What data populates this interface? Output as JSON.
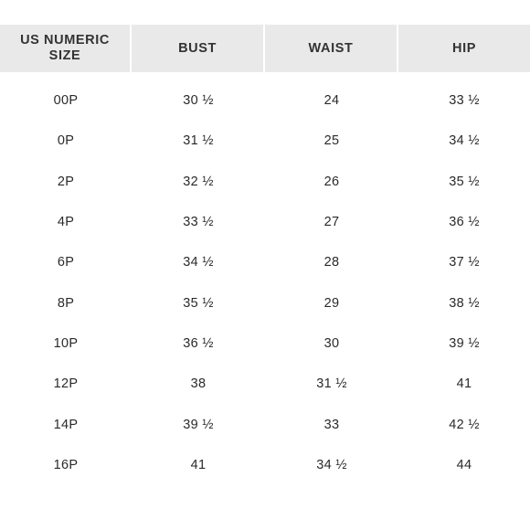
{
  "table": {
    "columns": [
      "US NUMERIC\nSIZE",
      "BUST",
      "WAIST",
      "HIP"
    ],
    "rows": [
      [
        "00P",
        "30 ½",
        "24",
        "33 ½"
      ],
      [
        "0P",
        "31 ½",
        "25",
        "34 ½"
      ],
      [
        "2P",
        "32 ½",
        "26",
        "35 ½"
      ],
      [
        "4P",
        "33 ½",
        "27",
        "36 ½"
      ],
      [
        "6P",
        "34 ½",
        "28",
        "37 ½"
      ],
      [
        "8P",
        "35 ½",
        "29",
        "38 ½"
      ],
      [
        "10P",
        "36 ½",
        "30",
        "39 ½"
      ],
      [
        "12P",
        "38",
        "31 ½",
        "41"
      ],
      [
        "14P",
        "39 ½",
        "33",
        "42 ½"
      ],
      [
        "16P",
        "41",
        "34 ½",
        "44"
      ]
    ]
  },
  "colors": {
    "header_bg": "#e9e9e9",
    "text": "#2a2a2a"
  }
}
